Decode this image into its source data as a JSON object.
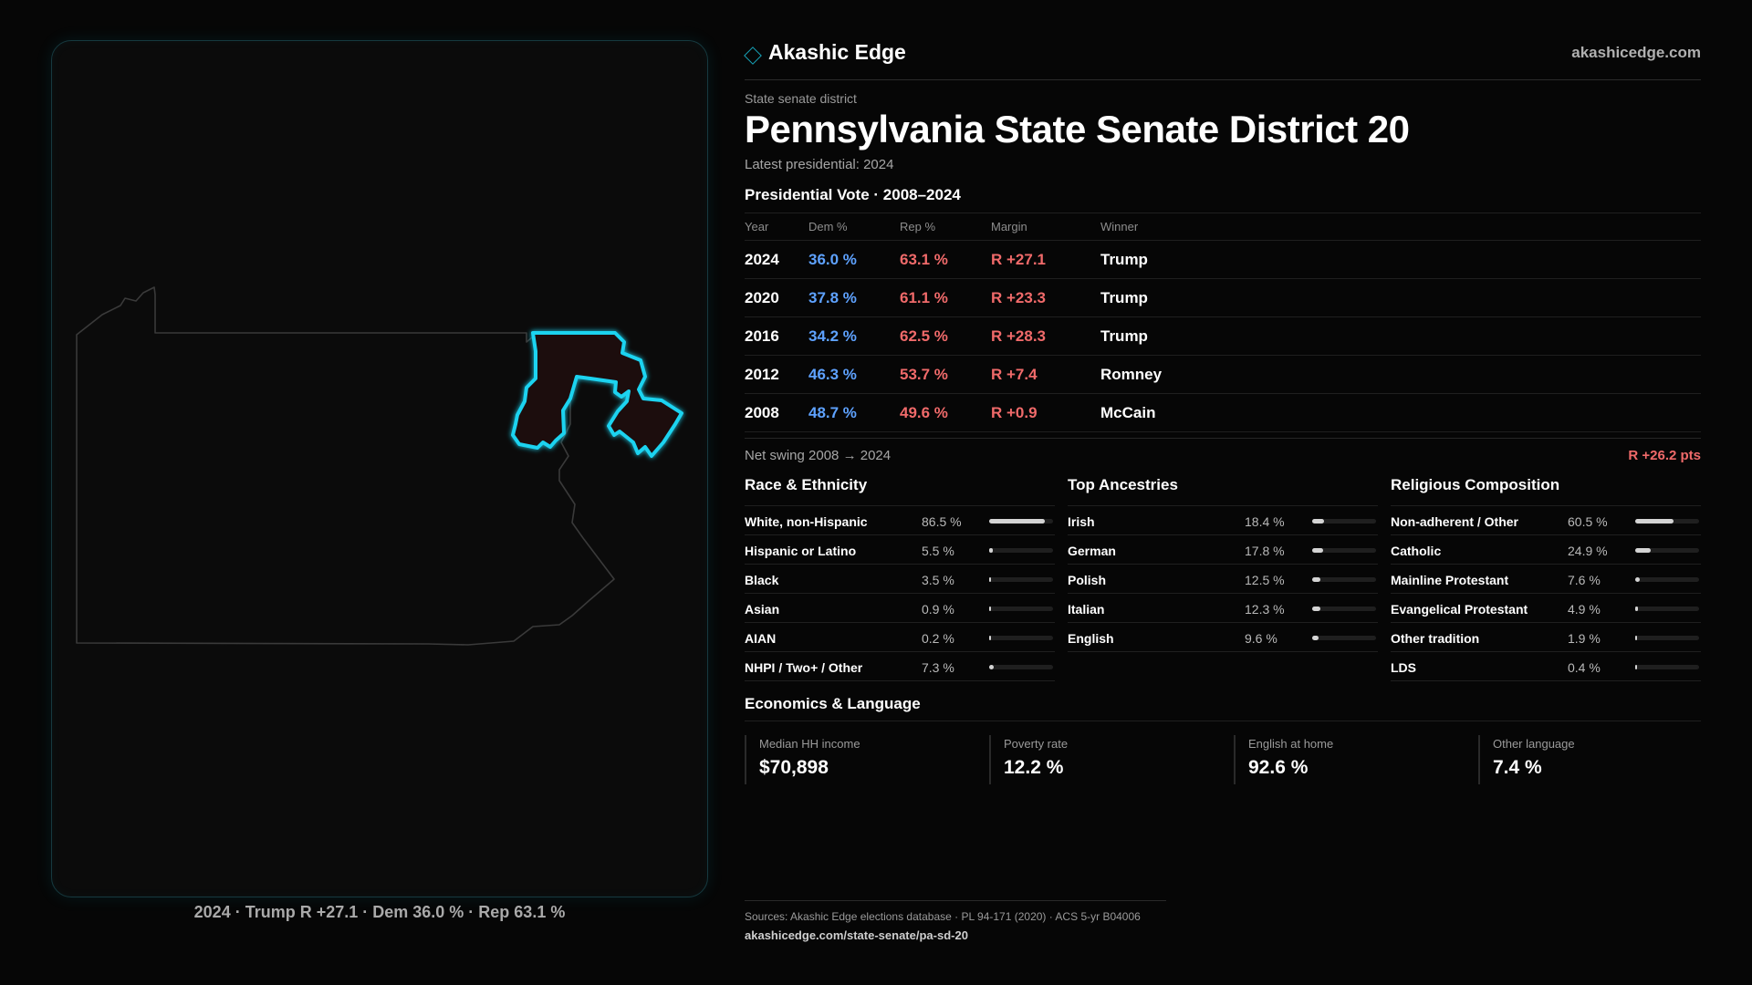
{
  "brand": {
    "name": "Akashic Edge",
    "url": "akashicedge.com"
  },
  "header": {
    "eyebrow": "State senate district",
    "title": "Pennsylvania State Senate District 20",
    "subtitle": "Latest presidential: 2024"
  },
  "map": {
    "caption": "2024 · Trump R +27.1 · Dem 36.0 % · Rep 63.1 %",
    "highlight_color": "#1ad3f0",
    "state_outline_color": "#3a3a3a"
  },
  "presidential": {
    "title": "Presidential Vote · 2008–2024",
    "columns": [
      "Year",
      "Dem %",
      "Rep %",
      "Margin",
      "Winner"
    ],
    "rows": [
      {
        "year": "2024",
        "dem": "36.0 %",
        "rep": "63.1 %",
        "margin": "R +27.1",
        "winner": "Trump"
      },
      {
        "year": "2020",
        "dem": "37.8 %",
        "rep": "61.1 %",
        "margin": "R +23.3",
        "winner": "Trump"
      },
      {
        "year": "2016",
        "dem": "34.2 %",
        "rep": "62.5 %",
        "margin": "R +28.3",
        "winner": "Trump"
      },
      {
        "year": "2012",
        "dem": "46.3 %",
        "rep": "53.7 %",
        "margin": "R +7.4",
        "winner": "Romney"
      },
      {
        "year": "2008",
        "dem": "48.7 %",
        "rep": "49.6 %",
        "margin": "R +0.9",
        "winner": "McCain"
      }
    ],
    "dem_color": "#5ea2ff",
    "rep_color": "#f06a6a"
  },
  "swing": {
    "label": "Net swing 2008 → 2024",
    "value": "R +26.2 pts"
  },
  "race": {
    "title": "Race & Ethnicity",
    "rows": [
      {
        "label": "White, non-Hispanic",
        "pct": "86.5 %",
        "value": 86.5
      },
      {
        "label": "Hispanic or Latino",
        "pct": "5.5 %",
        "value": 5.5
      },
      {
        "label": "Black",
        "pct": "3.5 %",
        "value": 3.5
      },
      {
        "label": "Asian",
        "pct": "0.9 %",
        "value": 0.9
      },
      {
        "label": "AIAN",
        "pct": "0.2 %",
        "value": 0.2
      },
      {
        "label": "NHPI / Two+ / Other",
        "pct": "7.3 %",
        "value": 7.3
      }
    ]
  },
  "ancestry": {
    "title": "Top Ancestries",
    "rows": [
      {
        "label": "Irish",
        "pct": "18.4 %",
        "value": 18.4
      },
      {
        "label": "German",
        "pct": "17.8 %",
        "value": 17.8
      },
      {
        "label": "Polish",
        "pct": "12.5 %",
        "value": 12.5
      },
      {
        "label": "Italian",
        "pct": "12.3 %",
        "value": 12.3
      },
      {
        "label": "English",
        "pct": "9.6 %",
        "value": 9.6
      }
    ]
  },
  "religion": {
    "title": "Religious Composition",
    "rows": [
      {
        "label": "Non-adherent / Other",
        "pct": "60.5 %",
        "value": 60.5
      },
      {
        "label": "Catholic",
        "pct": "24.9 %",
        "value": 24.9
      },
      {
        "label": "Mainline Protestant",
        "pct": "7.6 %",
        "value": 7.6
      },
      {
        "label": "Evangelical Protestant",
        "pct": "4.9 %",
        "value": 4.9
      },
      {
        "label": "Other tradition",
        "pct": "1.9 %",
        "value": 1.9
      },
      {
        "label": "LDS",
        "pct": "0.4 %",
        "value": 0.4
      }
    ]
  },
  "economics": {
    "title": "Economics & Language",
    "cards": [
      {
        "label": "Median HH income",
        "value": "$70,898"
      },
      {
        "label": "Poverty rate",
        "value": "12.2 %"
      },
      {
        "label": "English at home",
        "value": "92.6 %"
      },
      {
        "label": "Other language",
        "value": "7.4 %"
      }
    ]
  },
  "footer": {
    "sources": "Sources: Akashic Edge elections database · PL 94-171 (2020) · ACS 5-yr B04006",
    "url": "akashicedge.com/state-senate/pa-sd-20"
  }
}
